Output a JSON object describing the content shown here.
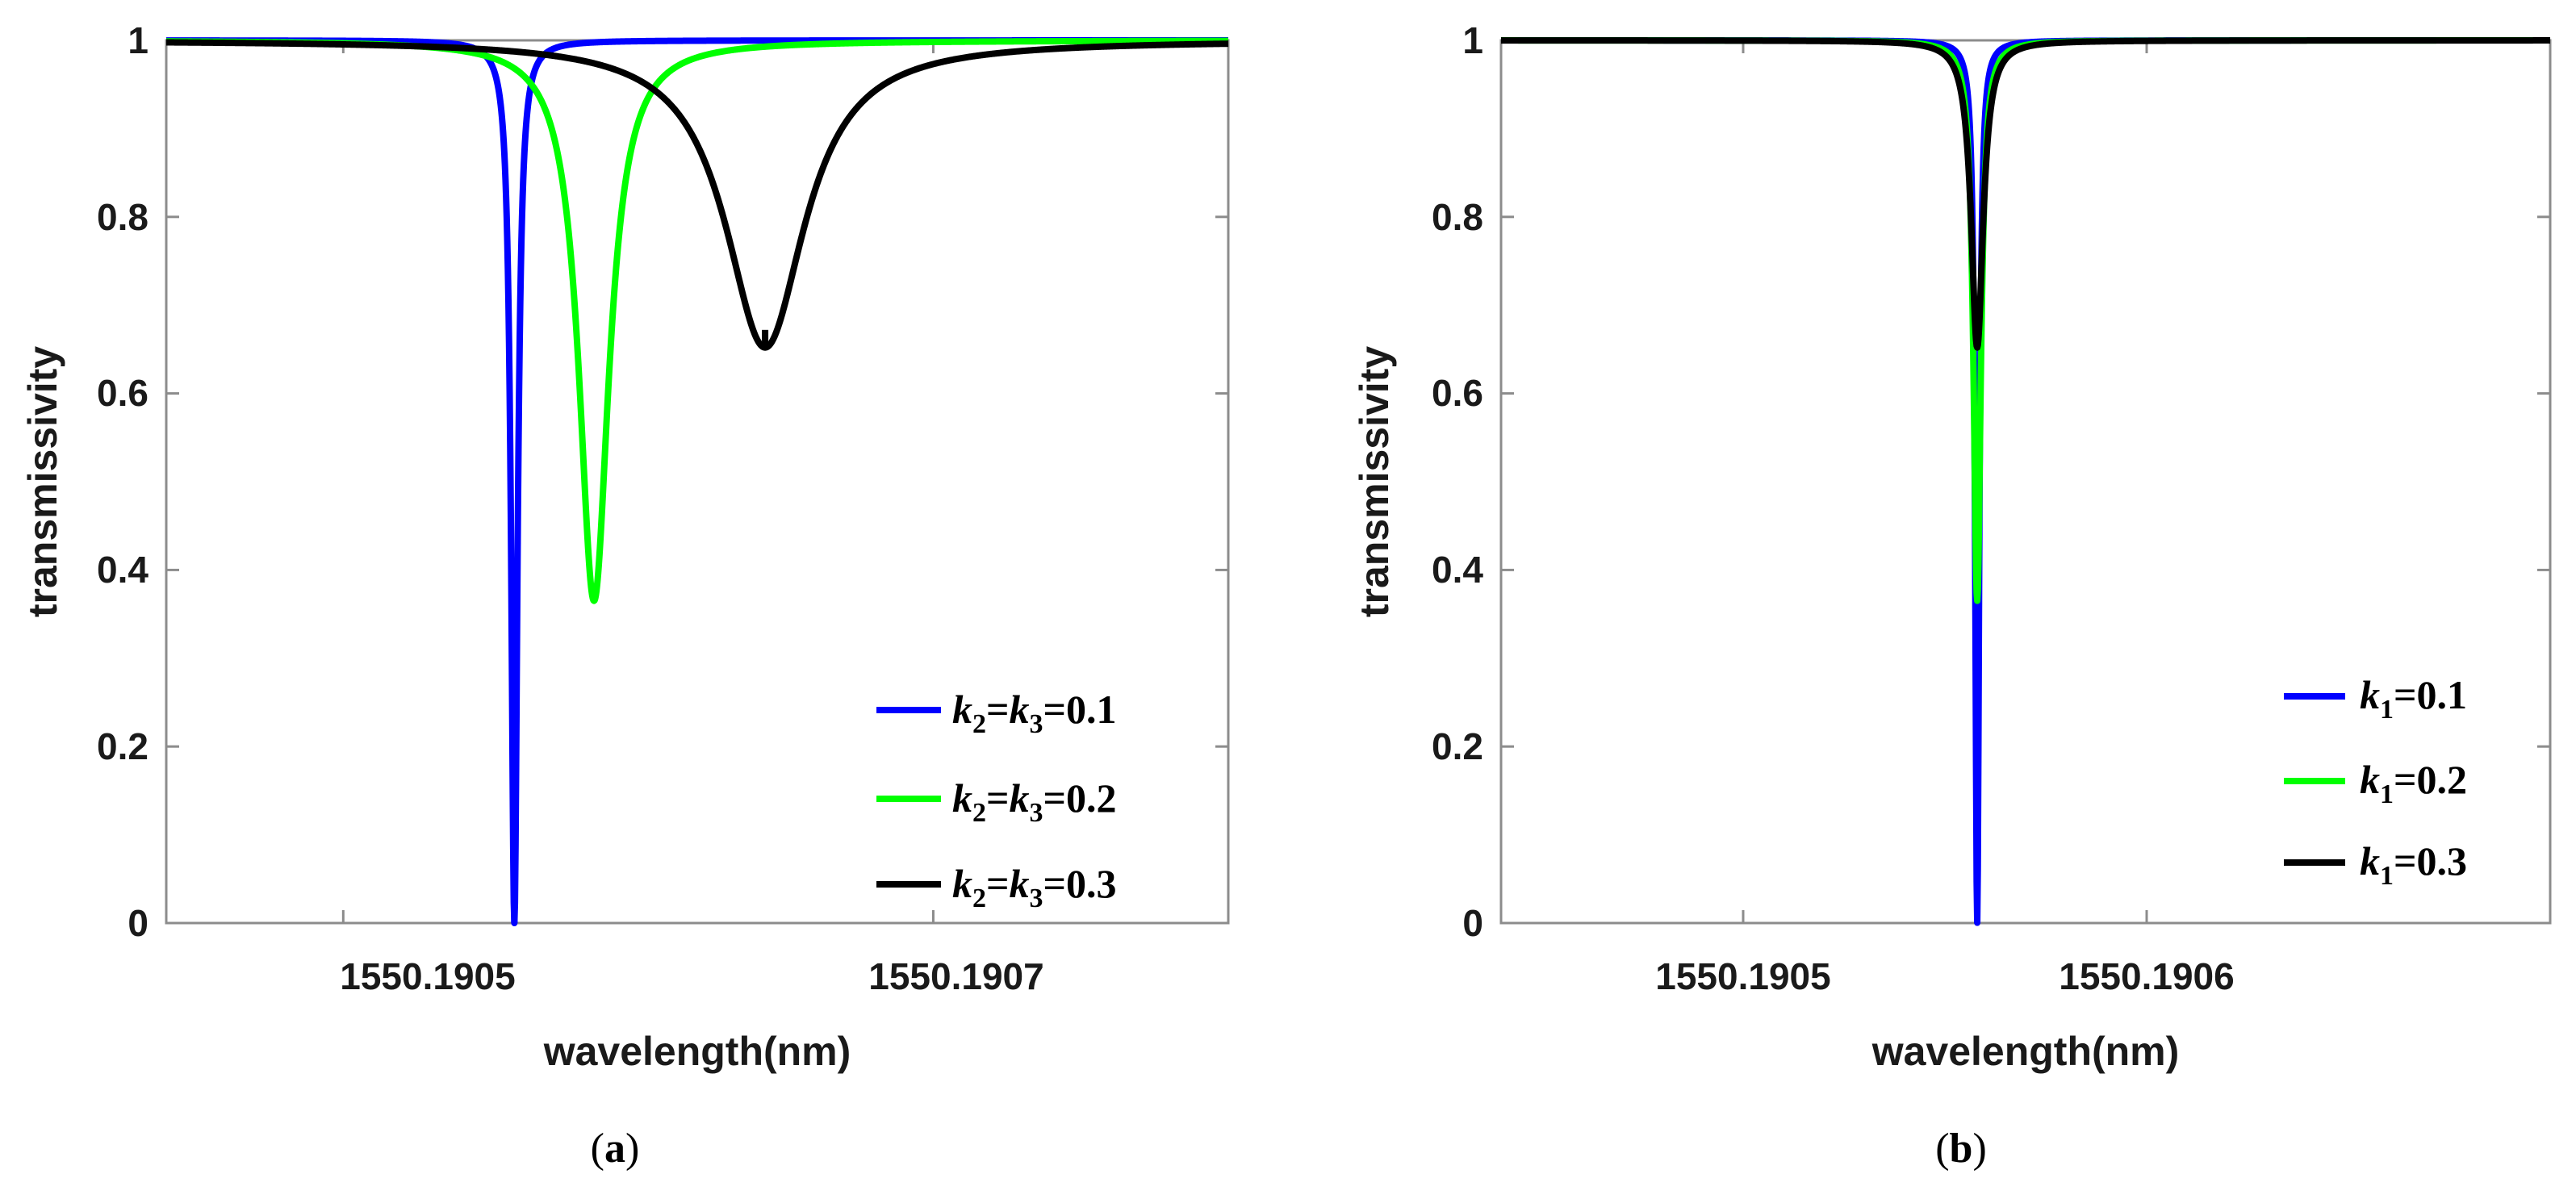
{
  "chart_data": [
    {
      "id": "a",
      "type": "line",
      "caption": "a",
      "xlabel": "wavelength(nm)",
      "ylabel": "transmissivity",
      "xlim": [
        1550.19044,
        1550.1908
      ],
      "ylim": [
        0,
        1
      ],
      "x_ticks": [
        1550.1905,
        1550.1907
      ],
      "x_tick_labels": [
        "1550.1905",
        "1550.1907"
      ],
      "y_ticks": [
        0,
        0.2,
        0.4,
        0.6,
        0.8,
        1
      ],
      "y_tick_labels": [
        "0",
        "0.2",
        "0.4",
        "0.6",
        "0.8",
        "1"
      ],
      "legend_position": "bottom-right",
      "series": [
        {
          "name": "k2=k3=0.1",
          "label_main": "k",
          "sub1": "2",
          "eq": "=",
          "k2": "k",
          "sub2": "3",
          "tail": "=0.1",
          "color": "#0000ff",
          "center": 1550.190558,
          "min": 0.0,
          "hwhm": 1.3e-06
        },
        {
          "name": "k2=k3=0.2",
          "label_main": "k",
          "sub1": "2",
          "eq": "=",
          "k2": "k",
          "sub2": "3",
          "tail": "=0.2",
          "color": "#00ff00",
          "center": 1550.190585,
          "min": 0.365,
          "hwhm": 6.2e-06
        },
        {
          "name": "k2=k3=0.3",
          "label_main": "k",
          "sub1": "2",
          "eq": "=",
          "k2": "k",
          "sub2": "3",
          "tail": "=0.3",
          "color": "#000000",
          "center": 1550.190643,
          "min": 0.652,
          "hwhm": 1.65e-05
        }
      ]
    },
    {
      "id": "b",
      "type": "line",
      "caption": "b",
      "xlabel": "wavelength(nm)",
      "ylabel": "transmissivity",
      "xlim": [
        1550.19044,
        1550.1907
      ],
      "ylim": [
        0,
        1
      ],
      "x_ticks": [
        1550.1905,
        1550.1906
      ],
      "x_tick_labels": [
        "1550.1905",
        "1550.1906"
      ],
      "y_ticks": [
        0,
        0.2,
        0.4,
        0.6,
        0.8,
        1
      ],
      "y_tick_labels": [
        "0",
        "0.2",
        "0.4",
        "0.6",
        "0.8",
        "1"
      ],
      "legend_position": "bottom-right",
      "series": [
        {
          "name": "k1=0.1",
          "label_main": "k",
          "sub1": "1",
          "tail": "=0.1",
          "color": "#0000ff",
          "center": 1550.190558,
          "min": 0.0,
          "hwhm": 6e-07
        },
        {
          "name": "k1=0.2",
          "label_main": "k",
          "sub1": "1",
          "tail": "=0.2",
          "color": "#00ff00",
          "center": 1550.190558,
          "min": 0.365,
          "hwhm": 1.1e-06
        },
        {
          "name": "k1=0.3",
          "label_main": "k",
          "sub1": "1",
          "tail": "=0.3",
          "color": "#000000",
          "center": 1550.190558,
          "min": 0.652,
          "hwhm": 1.8e-06
        }
      ]
    }
  ]
}
